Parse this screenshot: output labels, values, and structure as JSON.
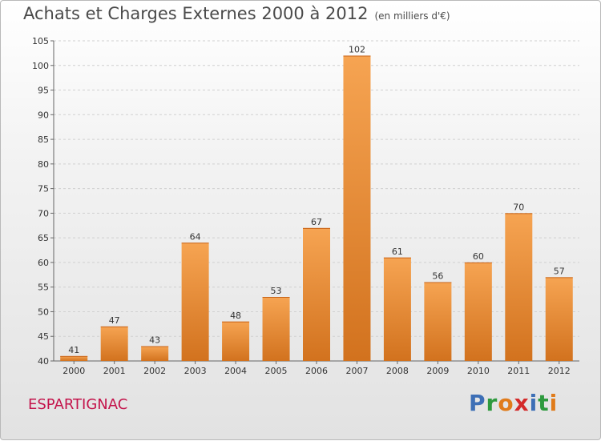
{
  "header": {
    "title": "Achats et Charges Externes 2000 à 2012",
    "subtitle": "(en milliers d'€)"
  },
  "footer": {
    "commune": "ESPARTIGNAC",
    "brand": [
      "P",
      "r",
      "o",
      "x",
      "i",
      "t",
      "i"
    ],
    "brand_colors": [
      "#3d6fb6",
      "#2e9a3e",
      "#e07b1a",
      "#d42a2a",
      "#3d6fb6",
      "#2e9a3e",
      "#e07b1a"
    ]
  },
  "colors": {
    "bar_light": "#f6a452",
    "bar_dark": "#d2721e",
    "grid": "#d0d0d0",
    "axis": "#666666"
  },
  "chart_data": {
    "type": "bar",
    "title": "Achats et Charges Externes 2000 à 2012",
    "subtitle": "(en milliers d'€)",
    "xlabel": "",
    "ylabel": "",
    "categories": [
      "2000",
      "2001",
      "2002",
      "2003",
      "2004",
      "2005",
      "2006",
      "2007",
      "2008",
      "2009",
      "2010",
      "2011",
      "2012"
    ],
    "values": [
      41,
      47,
      43,
      64,
      48,
      53,
      67,
      102,
      61,
      56,
      60,
      70,
      57
    ],
    "ylim": [
      40,
      105
    ],
    "yticks": [
      40,
      45,
      50,
      55,
      60,
      65,
      70,
      75,
      80,
      85,
      90,
      95,
      100,
      105
    ],
    "grid": true
  }
}
